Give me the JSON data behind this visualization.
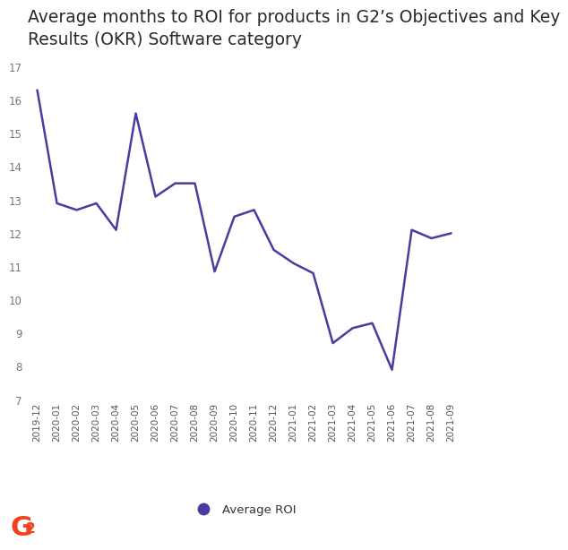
{
  "title_line1": "Average months to ROI for products in G2’s Objectives and Key",
  "title_line2": "Results (OKR) Software category",
  "title_fontsize": 13.5,
  "line_color": "#4B3B9E",
  "legend_label": "Average ROI",
  "ylim": [
    7,
    17
  ],
  "yticks": [
    7,
    8,
    9,
    10,
    11,
    12,
    13,
    14,
    15,
    16,
    17
  ],
  "background_color": "#ffffff",
  "x_labels": [
    "2019-12",
    "2020-01",
    "2020-02",
    "2020-03",
    "2020-04",
    "2020-05",
    "2020-06",
    "2020-07",
    "2020-08",
    "2020-09",
    "2020-10",
    "2020-11",
    "2020-12",
    "2021-01",
    "2021-02",
    "2021-03",
    "2021-04",
    "2021-05",
    "2021-06",
    "2021-07",
    "2021-08",
    "2021-09"
  ],
  "y_values": [
    16.3,
    12.9,
    12.7,
    12.9,
    12.1,
    15.6,
    13.1,
    13.5,
    13.5,
    10.85,
    12.5,
    12.7,
    11.5,
    11.1,
    10.8,
    8.7,
    9.15,
    9.3,
    7.9,
    12.1,
    11.85,
    12.0
  ],
  "g2_color": "#F2411E"
}
